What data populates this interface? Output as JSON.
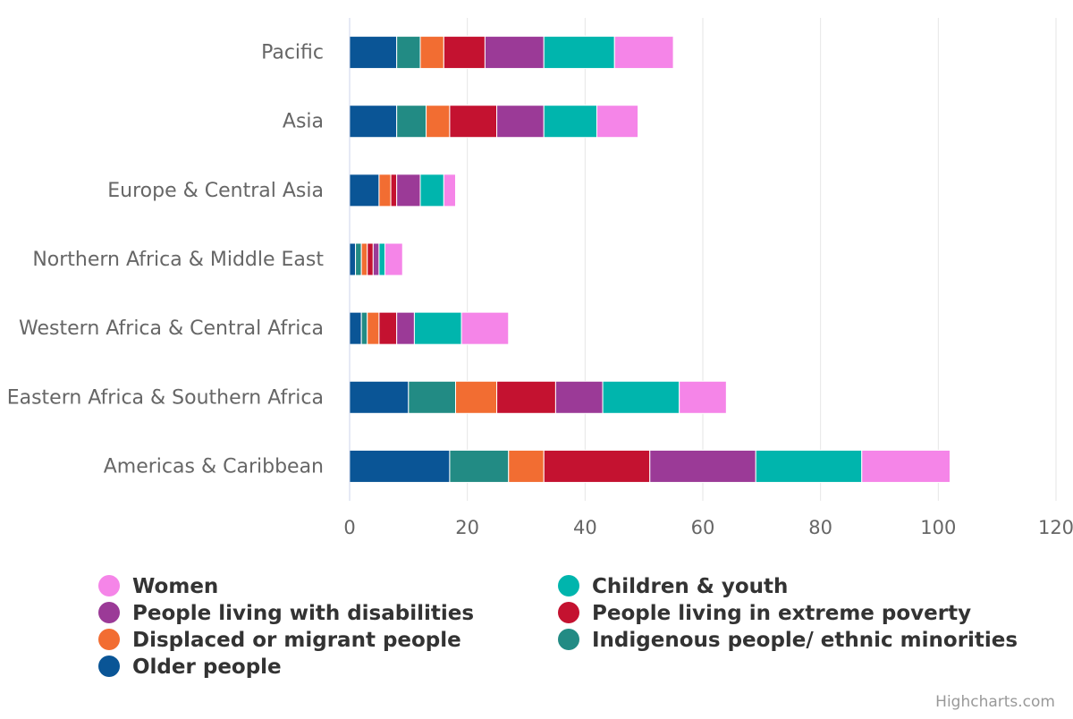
{
  "chart_data": {
    "type": "bar",
    "stacked": true,
    "orientation": "horizontal",
    "categories": [
      "Pacific",
      "Asia",
      "Europe & Central Asia",
      "Northern Africa & Middle East",
      "Western Africa & Central Africa",
      "Eastern Africa & Southern Africa",
      "Americas & Caribbean"
    ],
    "xlim": [
      0,
      120
    ],
    "ticks": [
      0,
      20,
      40,
      60,
      80,
      100,
      120
    ],
    "grid": true,
    "legend_position": "bottom",
    "series": [
      {
        "name": "Older people",
        "color": "#0a5596",
        "values": [
          8,
          8,
          5,
          1,
          2,
          10,
          17
        ]
      },
      {
        "name": "Indigenous people/ ethnic minorities",
        "color": "#228b84",
        "values": [
          4,
          5,
          0,
          1,
          1,
          8,
          10
        ]
      },
      {
        "name": "Displaced or migrant people",
        "color": "#f26d32",
        "values": [
          4,
          4,
          2,
          1,
          2,
          7,
          6
        ]
      },
      {
        "name": "People living in extreme poverty",
        "color": "#c41230",
        "values": [
          7,
          8,
          1,
          1,
          3,
          10,
          18
        ]
      },
      {
        "name": "People living with disabilities",
        "color": "#9b3a97",
        "values": [
          10,
          8,
          4,
          1,
          3,
          8,
          18
        ]
      },
      {
        "name": "Children & youth",
        "color": "#00b5ad",
        "values": [
          12,
          9,
          4,
          1,
          8,
          13,
          18
        ]
      },
      {
        "name": "Women",
        "color": "#f585e8",
        "values": [
          10,
          7,
          2,
          3,
          8,
          8,
          15
        ]
      }
    ],
    "legend_order": [
      "Women",
      "Children & youth",
      "People living with disabilities",
      "People living in extreme poverty",
      "Displaced or migrant people",
      "Indigenous people/ ethnic minorities",
      "Older people"
    ]
  },
  "credits": "Highcharts.com"
}
